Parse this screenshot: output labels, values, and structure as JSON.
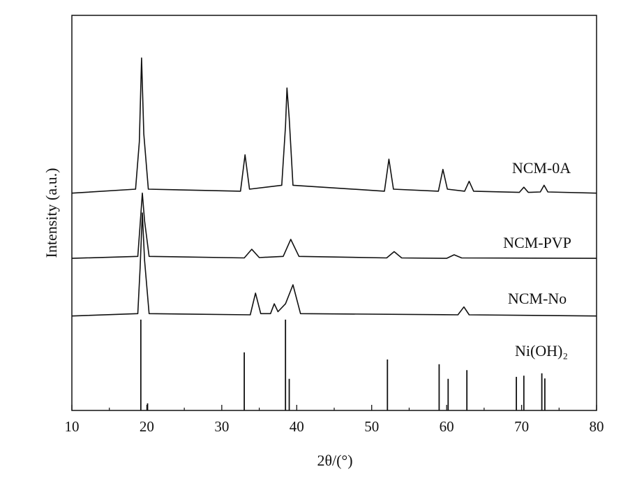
{
  "chart_data": {
    "type": "line",
    "xlabel": "2θ/(°)",
    "ylabel": "Intensity (a.u.)",
    "xlim": [
      10,
      80
    ],
    "xticks": [
      10,
      20,
      30,
      40,
      50,
      60,
      70,
      80
    ],
    "ylim": [
      0,
      100
    ],
    "series": [
      {
        "name": "NCM-0A",
        "color": "#111111",
        "x": [
          10,
          18.5,
          19.0,
          19.3,
          19.6,
          20.2,
          32.5,
          33.1,
          33.7,
          38.0,
          38.5,
          38.7,
          39.0,
          39.5,
          51.7,
          52.3,
          52.9,
          58.9,
          59.5,
          60.1,
          62.4,
          63,
          63.6,
          69.7,
          70.3,
          70.9,
          72.5,
          73,
          73.5,
          80
        ],
        "values": [
          55,
          56,
          68,
          89.2,
          70,
          56,
          55.5,
          64.7,
          56,
          57,
          72,
          81.6,
          74,
          57,
          55.5,
          63.6,
          56,
          55.5,
          61,
          56,
          55.5,
          58,
          55.5,
          55.2,
          56.5,
          55.2,
          55.3,
          57,
          55.3,
          55
        ]
      },
      {
        "name": "NCM-PVP",
        "color": "#111111",
        "x": [
          10,
          18.8,
          19.1,
          19.4,
          19.7,
          20.3,
          33,
          34,
          35,
          38.2,
          39.2,
          40.3,
          52,
          53,
          54,
          60,
          61,
          62,
          80
        ],
        "values": [
          38.5,
          39,
          47,
          55,
          48,
          39,
          38.6,
          40.8,
          38.7,
          39,
          43.3,
          39,
          38.6,
          40.2,
          38.6,
          38.5,
          39.4,
          38.6,
          38.5
        ]
      },
      {
        "name": "NCM-No",
        "color": "#111111",
        "x": [
          10,
          18.8,
          19.1,
          19.4,
          19.7,
          20.3,
          33.8,
          34.5,
          35.2,
          36.5,
          37,
          37.5,
          38.5,
          39.5,
          40.5,
          61.5,
          62.3,
          63,
          80
        ],
        "values": [
          23.9,
          24.5,
          36,
          50,
          38,
          24.5,
          24.2,
          29.7,
          24.5,
          24.5,
          27,
          25,
          27,
          31.8,
          24.5,
          24.2,
          26.2,
          24.2,
          23.9
        ]
      },
      {
        "name": "Ni(OH)₂",
        "color": "#111111",
        "type": "stick",
        "x": [
          19.2,
          20.1,
          33.0,
          38.5,
          39.0,
          52.1,
          59.0,
          60.2,
          62.7,
          69.3,
          70.3,
          72.7,
          73.1
        ],
        "values": [
          23,
          1.8,
          14.7,
          23,
          8,
          12.9,
          11.7,
          8,
          10.2,
          8.5,
          8.8,
          9.4,
          8.1
        ]
      }
    ]
  }
}
